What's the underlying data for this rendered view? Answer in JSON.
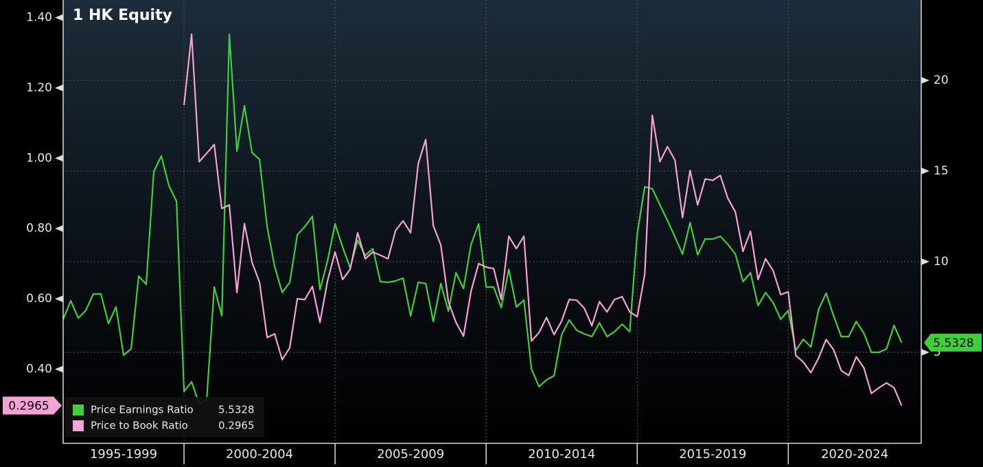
{
  "chart_data": {
    "type": "line",
    "title": "1 HK Equity",
    "x": [
      1996,
      1996.25,
      1996.5,
      1996.75,
      1997,
      1997.25,
      1997.5,
      1997.75,
      1998,
      1998.25,
      1998.5,
      1998.75,
      1999,
      1999.25,
      1999.5,
      1999.75,
      2000,
      2000.25,
      2000.5,
      2000.75,
      2001,
      2001.25,
      2001.5,
      2001.75,
      2002,
      2002.25,
      2002.5,
      2002.75,
      2003,
      2003.25,
      2003.5,
      2003.75,
      2004,
      2004.25,
      2004.5,
      2004.75,
      2005,
      2005.25,
      2005.5,
      2005.75,
      2006,
      2006.25,
      2006.5,
      2006.75,
      2007,
      2007.25,
      2007.5,
      2007.75,
      2008,
      2008.25,
      2008.5,
      2008.75,
      2009,
      2009.25,
      2009.5,
      2009.75,
      2010,
      2010.25,
      2010.5,
      2010.75,
      2011,
      2011.25,
      2011.5,
      2011.75,
      2012,
      2012.25,
      2012.5,
      2012.75,
      2013,
      2013.25,
      2013.5,
      2013.75,
      2014,
      2014.25,
      2014.5,
      2014.75,
      2015,
      2015.25,
      2015.5,
      2015.75,
      2016,
      2016.25,
      2016.5,
      2016.75,
      2017,
      2017.25,
      2017.5,
      2017.75,
      2018,
      2018.25,
      2018.5,
      2018.75,
      2019,
      2019.25,
      2019.5,
      2019.75,
      2020,
      2020.25,
      2020.5,
      2020.75,
      2021,
      2021.25,
      2021.5,
      2021.75,
      2022,
      2022.25,
      2022.5,
      2022.75,
      2023,
      2023.25,
      2023.5,
      2023.75
    ],
    "xlim": [
      1996,
      2024.4
    ],
    "x_periods": [
      {
        "label": "1995-1999",
        "from": 1995,
        "to": 2000
      },
      {
        "label": "2000-2004",
        "from": 2000,
        "to": 2005
      },
      {
        "label": "2005-2009",
        "from": 2005,
        "to": 2010
      },
      {
        "label": "2010-2014",
        "from": 2010,
        "to": 2015
      },
      {
        "label": "2015-2019",
        "from": 2015,
        "to": 2020
      },
      {
        "label": "2020-2024",
        "from": 2020,
        "to": 2025
      }
    ],
    "ylim": [
      0.19,
      1.45
    ],
    "yticks": [
      {
        "value": 0.4,
        "label": "0.40"
      },
      {
        "value": 0.6,
        "label": "0.60"
      },
      {
        "value": 0.8,
        "label": "0.80"
      },
      {
        "value": 1.0,
        "label": "1.00"
      },
      {
        "value": 1.2,
        "label": "1.20"
      },
      {
        "value": 1.4,
        "label": "1.40"
      }
    ],
    "y2lim": [
      0,
      24.43
    ],
    "y2ticks": [
      5,
      10,
      15,
      20
    ],
    "grid": true,
    "legend": "lower left",
    "series": [
      {
        "name": "Price Earnings Ratio",
        "color": "#3fcf3a",
        "axis": "y2",
        "values": [
          6.82,
          7.84,
          6.89,
          7.31,
          8.22,
          8.22,
          6.59,
          7.5,
          4.85,
          5.19,
          9.2,
          8.75,
          14.96,
          15.83,
          14.2,
          13.33,
          2.84,
          3.37,
          2.16,
          2.39,
          8.6,
          7.01,
          22.54,
          16.1,
          18.6,
          16.02,
          15.64,
          11.93,
          9.73,
          8.3,
          8.86,
          11.48,
          11.93,
          12.5,
          8.45,
          10.04,
          12.08,
          10.8,
          9.66,
          11.17,
          10.34,
          10.72,
          8.9,
          8.86,
          8.94,
          9.09,
          7.01,
          8.86,
          8.79,
          6.7,
          8.79,
          7.27,
          9.39,
          8.52,
          10.95,
          12.08,
          8.6,
          8.6,
          7.46,
          9.58,
          7.5,
          7.88,
          4.09,
          3.11,
          3.48,
          3.71,
          5.98,
          6.78,
          6.21,
          6.02,
          5.87,
          6.63,
          5.87,
          6.14,
          6.55,
          6.14,
          11.55,
          14.13,
          14.02,
          13.14,
          12.27,
          11.36,
          10.42,
          12.16,
          10.38,
          11.25,
          11.25,
          11.4,
          10.95,
          10.42,
          8.9,
          9.39,
          7.58,
          8.3,
          7.73,
          6.82,
          7.31,
          5.11,
          5.72,
          5.3,
          7.35,
          8.26,
          7.01,
          5.87,
          5.87,
          6.7,
          6.06,
          5.0,
          5.0,
          5.19,
          6.48,
          5.5328
        ]
      },
      {
        "name": "Price to Book Ratio",
        "color": "#f6a2d6",
        "values": [
          null,
          null,
          null,
          null,
          null,
          null,
          null,
          null,
          null,
          null,
          null,
          null,
          null,
          null,
          null,
          null,
          1.151,
          1.353,
          0.99,
          1.014,
          1.039,
          0.857,
          0.867,
          0.618,
          0.814,
          0.704,
          0.647,
          0.49,
          0.5,
          0.427,
          0.461,
          0.6,
          0.598,
          0.635,
          0.533,
          0.651,
          0.733,
          0.655,
          0.684,
          0.788,
          0.714,
          0.733,
          0.724,
          0.714,
          0.794,
          0.822,
          0.788,
          0.984,
          1.053,
          0.808,
          0.753,
          0.592,
          0.533,
          0.494,
          0.622,
          0.7,
          0.69,
          0.686,
          0.598,
          0.778,
          0.743,
          0.778,
          0.48,
          0.504,
          0.547,
          0.498,
          0.537,
          0.598,
          0.596,
          0.573,
          0.524,
          0.592,
          0.563,
          0.598,
          0.606,
          0.563,
          0.549,
          0.671,
          1.122,
          0.99,
          1.033,
          0.994,
          0.831,
          0.965,
          0.867,
          0.941,
          0.937,
          0.951,
          0.886,
          0.847,
          0.735,
          0.792,
          0.655,
          0.714,
          0.68,
          0.612,
          0.62,
          0.439,
          0.42,
          0.39,
          0.431,
          0.484,
          0.455,
          0.396,
          0.382,
          0.435,
          0.404,
          0.331,
          0.347,
          0.361,
          0.347,
          0.2965
        ]
      }
    ]
  }
}
